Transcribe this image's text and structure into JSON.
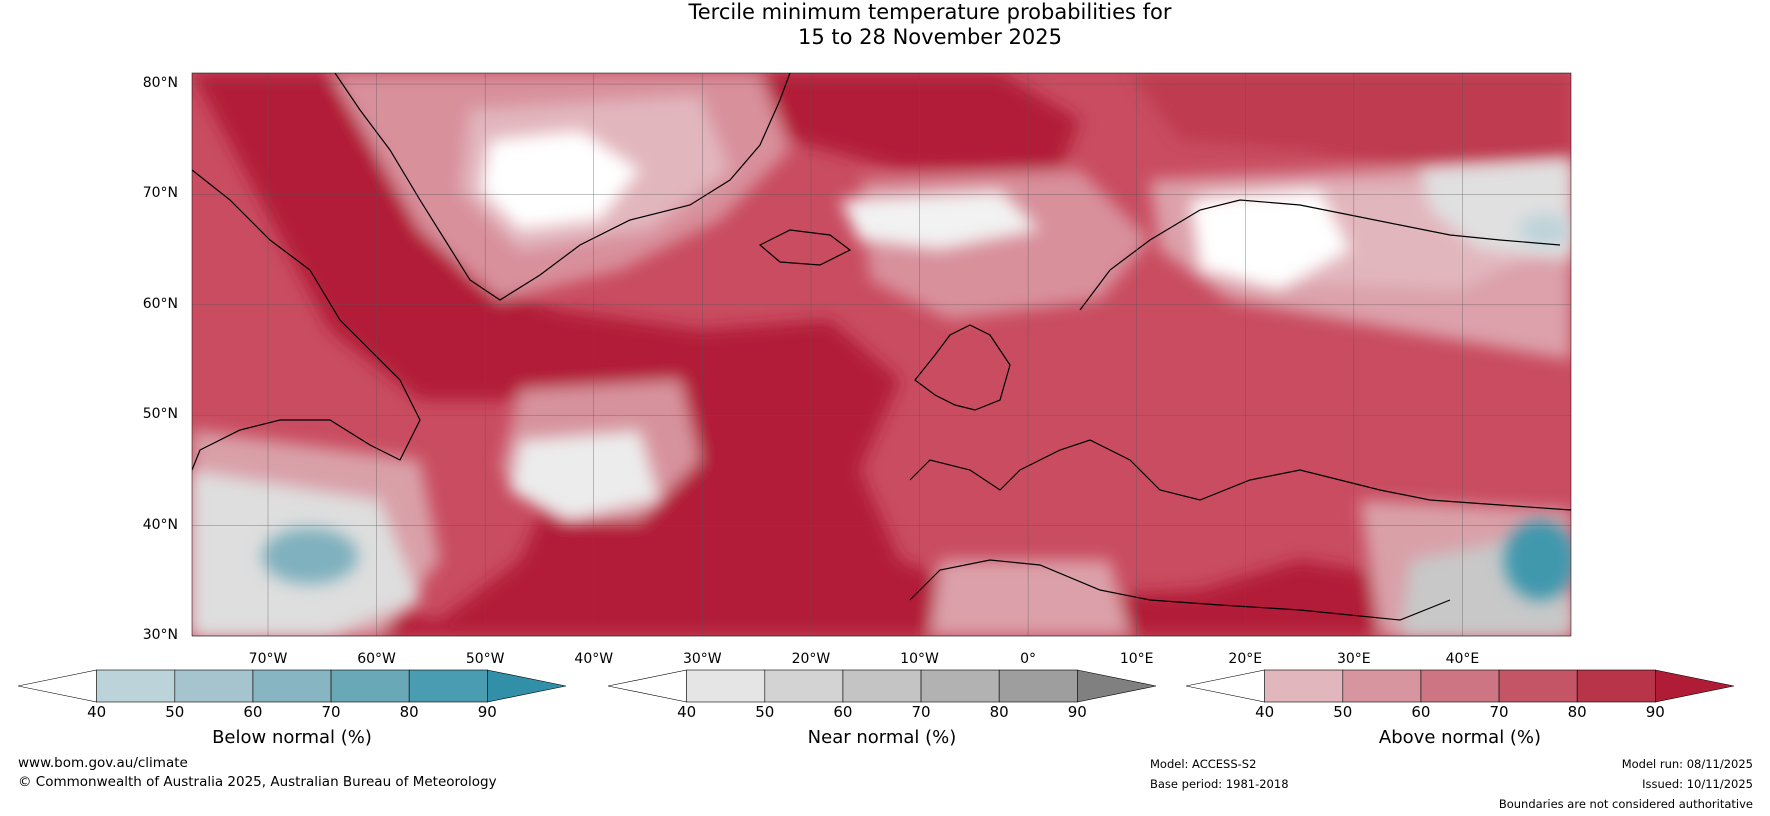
{
  "title": {
    "line1": "Tercile minimum temperature probabilities for",
    "line2": "15 to 28 November 2025"
  },
  "map": {
    "lat_labels": [
      "80°N",
      "70°N",
      "60°N",
      "50°N",
      "40°N",
      "30°N"
    ],
    "lon_labels": [
      "70°W",
      "60°W",
      "50°W",
      "40°W",
      "30°W",
      "20°W",
      "10°W",
      "0°",
      "10°E",
      "20°E",
      "30°E",
      "40°E"
    ],
    "lat_range": [
      30,
      81
    ],
    "lon_range": [
      -77,
      50
    ],
    "gridlines": true
  },
  "colorbars": [
    {
      "title": "Below normal (%)",
      "ticks": [
        "40",
        "50",
        "60",
        "70",
        "80",
        "90"
      ],
      "colors": [
        "#ffffff",
        "#bdd3da",
        "#a5c4cd",
        "#87b5c1",
        "#68a8b7",
        "#4a9db0",
        "#3190a8"
      ]
    },
    {
      "title": "Near normal (%)",
      "ticks": [
        "40",
        "50",
        "60",
        "70",
        "80",
        "90"
      ],
      "colors": [
        "#ffffff",
        "#e5e5e5",
        "#d3d3d3",
        "#c4c4c4",
        "#b2b2b2",
        "#9e9e9e",
        "#808080"
      ]
    },
    {
      "title": "Above normal (%)",
      "ticks": [
        "40",
        "50",
        "60",
        "70",
        "80",
        "90"
      ],
      "colors": [
        "#ffffff",
        "#e2b6bd",
        "#d7959f",
        "#cd7582",
        "#c35566",
        "#b83449",
        "#b01c36"
      ]
    }
  ],
  "footer": {
    "website": "www.bom.gov.au/climate",
    "copyright": "© Commonwealth of Australia 2025, Australian Bureau of Meteorology",
    "model": "Model: ACCESS-S2",
    "base_period": "Base period: 1981-2018",
    "model_run": "Model run: 08/11/2025",
    "issued": "Issued: 10/11/2025",
    "disclaimer": "Boundaries are not considered authoritative"
  }
}
